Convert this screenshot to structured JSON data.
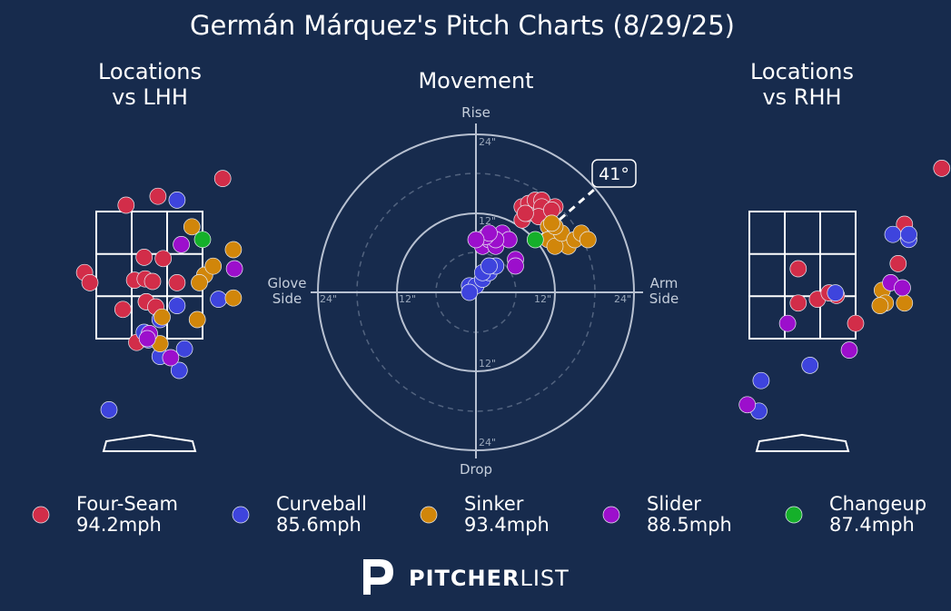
{
  "title": "Germán Márquez's Pitch Charts (8/29/25)",
  "panels": {
    "lhh_title": [
      "Locations",
      "vs LHH"
    ],
    "movement_title": "Movement",
    "rhh_title": [
      "Locations",
      "vs RHH"
    ]
  },
  "movement_axes": {
    "top": "Rise",
    "bottom": "Drop",
    "left": [
      "Glove",
      "Side"
    ],
    "right": [
      "Arm",
      "Side"
    ],
    "ring_labels": [
      "12\"",
      "24\""
    ],
    "arm_angle_label": "41°",
    "arm_angle_deg": 41
  },
  "colors": {
    "background": "#172b4d",
    "four_seam": "#d22d49",
    "curveball": "#3e44dd",
    "sinker": "#d1860a",
    "slider": "#9c0fcc",
    "changeup": "#15b02a"
  },
  "legend": [
    {
      "pitch": "Four-Seam",
      "speed": "94.2mph",
      "color": "#d22d49"
    },
    {
      "pitch": "Curveball",
      "speed": "85.6mph",
      "color": "#3e44dd"
    },
    {
      "pitch": "Sinker",
      "speed": "93.4mph",
      "color": "#d1860a"
    },
    {
      "pitch": "Slider",
      "speed": "88.5mph",
      "color": "#9c0fcc"
    },
    {
      "pitch": "Changeup",
      "speed": "87.4mph",
      "color": "#15b02a"
    }
  ],
  "brand": {
    "bold": "PITCHER",
    "light": "LIST"
  },
  "chart_data": [
    {
      "type": "scatter",
      "title": "Locations vs LHH",
      "x_units": "zone widths (-0.5 to 0.5 = strike zone)",
      "y_units": "zone heights (0 = bottom, 1 = top of zone)",
      "series": [
        {
          "name": "Four-Seam",
          "points": [
            [
              -0.22,
              1.05
            ],
            [
              0.08,
              1.12
            ],
            [
              0.69,
              1.26
            ],
            [
              -0.61,
              0.52
            ],
            [
              -0.56,
              0.44
            ],
            [
              -0.05,
              0.64
            ],
            [
              0.13,
              0.63
            ],
            [
              -0.14,
              0.46
            ],
            [
              -0.04,
              0.47
            ],
            [
              0.03,
              0.45
            ],
            [
              -0.03,
              0.29
            ],
            [
              0.26,
              0.44
            ],
            [
              -0.03,
              0.29
            ],
            [
              -0.25,
              0.23
            ],
            [
              0.06,
              0.25
            ],
            [
              -0.12,
              -0.03
            ]
          ]
        },
        {
          "name": "Curveball",
          "points": [
            [
              0.26,
              1.09
            ],
            [
              0.65,
              0.31
            ],
            [
              0.1,
              0.15
            ],
            [
              -0.05,
              0.05
            ],
            [
              -0.01,
              -0.01
            ],
            [
              0.26,
              0.26
            ],
            [
              0.33,
              -0.08
            ],
            [
              0.28,
              -0.25
            ],
            [
              -0.38,
              -0.56
            ],
            [
              0.1,
              -0.14
            ]
          ]
        },
        {
          "name": "Sinker",
          "points": [
            [
              0.4,
              0.88
            ],
            [
              0.79,
              0.7
            ],
            [
              0.52,
              0.5
            ],
            [
              0.47,
              0.44
            ],
            [
              0.6,
              0.57
            ],
            [
              0.12,
              0.17
            ],
            [
              0.79,
              0.32
            ],
            [
              0.45,
              0.15
            ],
            [
              0.1,
              -0.04
            ]
          ]
        },
        {
          "name": "Slider",
          "points": [
            [
              0.3,
              0.74
            ],
            [
              0.8,
              0.55
            ],
            [
              0.0,
              0.04
            ],
            [
              -0.02,
              0.0
            ],
            [
              0.2,
              -0.15
            ]
          ]
        },
        {
          "name": "Changeup",
          "points": [
            [
              0.5,
              0.78
            ]
          ]
        }
      ]
    },
    {
      "type": "scatter",
      "title": "Movement",
      "x_units": "inches (horizontal break, arm side positive)",
      "y_units": "inches (induced vertical break)",
      "rings": [
        12,
        24
      ],
      "series": [
        {
          "name": "Four-Seam",
          "points": [
            [
              7,
              11
            ],
            [
              8,
              12
            ],
            [
              9,
              12.5
            ],
            [
              10,
              12
            ],
            [
              11,
              11
            ],
            [
              7,
              13
            ],
            [
              8,
              13.5
            ],
            [
              9,
              14
            ],
            [
              10,
              14
            ],
            [
              12,
              13
            ],
            [
              10,
              13
            ],
            [
              9.5,
              11.5
            ],
            [
              11.5,
              12.5
            ],
            [
              7.5,
              12
            ]
          ]
        },
        {
          "name": "Curveball",
          "points": [
            [
              -1,
              1
            ],
            [
              0,
              1
            ],
            [
              1,
              2
            ],
            [
              2,
              3
            ],
            [
              3,
              4
            ],
            [
              1,
              3
            ],
            [
              -1,
              0
            ],
            [
              2,
              4
            ]
          ]
        },
        {
          "name": "Sinker",
          "points": [
            [
              11,
              10
            ],
            [
              12,
              9
            ],
            [
              13,
              8
            ],
            [
              14,
              7
            ],
            [
              11,
              8
            ],
            [
              12,
              7
            ],
            [
              13,
              9
            ],
            [
              12,
              10
            ],
            [
              15,
              8
            ],
            [
              16,
              9
            ],
            [
              11.5,
              10.5
            ],
            [
              17,
              8
            ]
          ]
        },
        {
          "name": "Slider",
          "points": [
            [
              1,
              7
            ],
            [
              2,
              8
            ],
            [
              3,
              7
            ],
            [
              4,
              9
            ],
            [
              5,
              8
            ],
            [
              3,
              8
            ],
            [
              1.5,
              8.5
            ],
            [
              6,
              5
            ],
            [
              6,
              4
            ],
            [
              2,
              9
            ],
            [
              0,
              8
            ]
          ]
        },
        {
          "name": "Changeup",
          "points": [
            [
              9,
              8
            ]
          ]
        }
      ]
    },
    {
      "type": "scatter",
      "title": "Locations vs RHH",
      "x_units": "zone widths (-0.5 to 0.5 = strike zone)",
      "y_units": "zone heights (0 = bottom, 1 = top of zone)",
      "series": [
        {
          "name": "Four-Seam",
          "points": [
            [
              1.31,
              1.34
            ],
            [
              0.96,
              0.9
            ],
            [
              0.9,
              0.59
            ],
            [
              -0.04,
              0.55
            ],
            [
              -0.04,
              0.28
            ],
            [
              0.32,
              0.34
            ],
            [
              0.14,
              0.31
            ],
            [
              0.25,
              0.36
            ],
            [
              0.5,
              0.12
            ]
          ]
        },
        {
          "name": "Curveball",
          "points": [
            [
              1.0,
              0.78
            ],
            [
              0.85,
              0.82
            ],
            [
              1.0,
              0.82
            ],
            [
              0.31,
              0.36
            ],
            [
              -0.39,
              -0.33
            ],
            [
              -0.41,
              -0.57
            ],
            [
              0.07,
              -0.21
            ]
          ]
        },
        {
          "name": "Sinker",
          "points": [
            [
              0.75,
              0.38
            ],
            [
              0.78,
              0.28
            ],
            [
              0.96,
              0.28
            ],
            [
              0.73,
              0.26
            ]
          ]
        },
        {
          "name": "Slider",
          "points": [
            [
              0.83,
              0.44
            ],
            [
              0.94,
              0.4
            ],
            [
              -0.14,
              0.12
            ],
            [
              0.44,
              -0.09
            ],
            [
              -0.52,
              -0.52
            ]
          ]
        }
      ]
    }
  ]
}
